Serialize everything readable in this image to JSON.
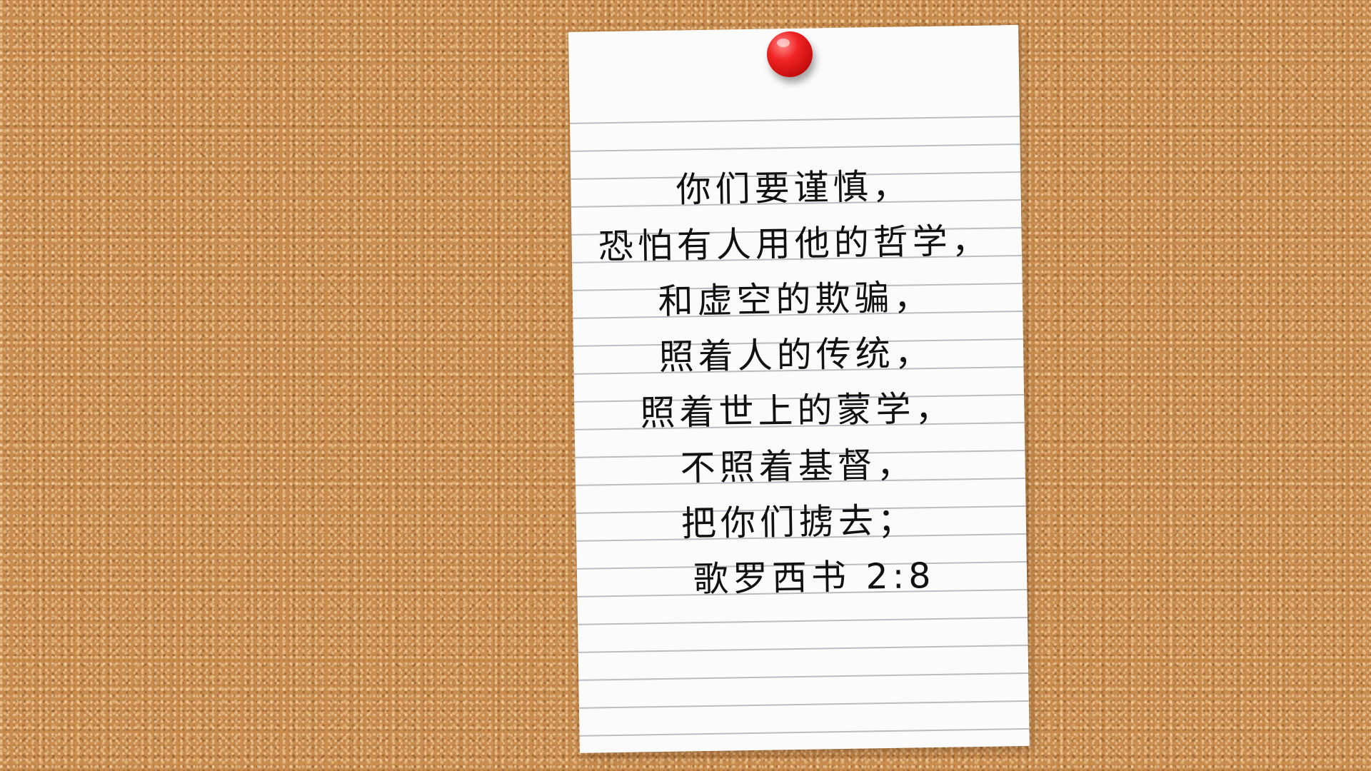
{
  "note": {
    "lines": [
      "你们要谨慎，",
      "恐怕有人用他的哲学，",
      "和虚空的欺骗，",
      "照着人的传统，",
      "照着世上的蒙学，",
      "不照着基督，",
      "把你们掳去；"
    ],
    "reference": "歌罗西书 2:8"
  },
  "colors": {
    "cork": "#c98d4f",
    "paper": "#fbfbfb",
    "rule_lines": "#b9bcc2",
    "pin": "#e81e1e",
    "ink": "#111111"
  }
}
